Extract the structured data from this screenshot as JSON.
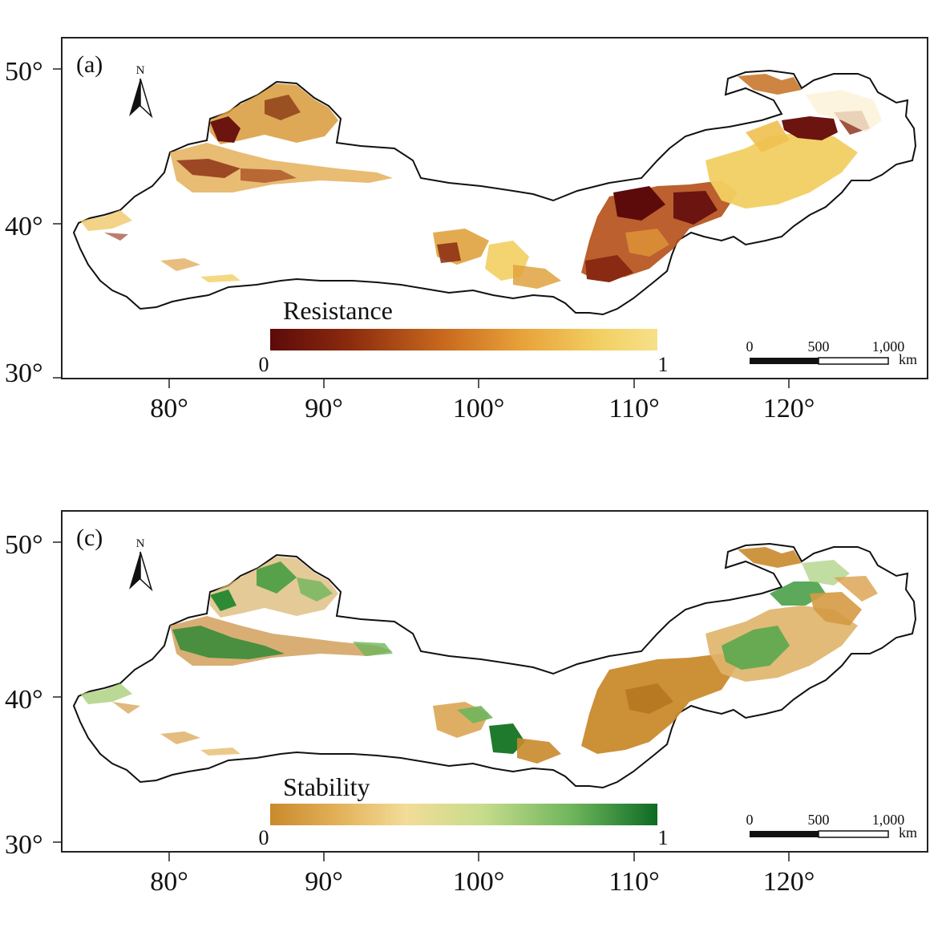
{
  "panels": [
    {
      "label": "(a)",
      "colorbar": {
        "title": "Resistance",
        "min_label": "0",
        "max_label": "1",
        "stops": [
          "#5c0a0a",
          "#8a2a0e",
          "#c96a1e",
          "#e8a23a",
          "#f2cf62",
          "#f7e08a"
        ]
      }
    },
    {
      "label": "(c)",
      "colorbar": {
        "title": "Stability",
        "min_label": "0",
        "max_label": "1",
        "stops": [
          "#c98a2c",
          "#e3b25a",
          "#f2dc98",
          "#c6dc8c",
          "#6fb55c",
          "#0d6b23"
        ]
      }
    }
  ],
  "axes": {
    "x_ticks": [
      "80°",
      "90°",
      "100°",
      "110°",
      "120°"
    ],
    "y_ticks": [
      "50°",
      "40°",
      "30°"
    ]
  },
  "north_arrow": {
    "label": "N"
  },
  "scale_bar": {
    "labels": [
      "0",
      "500",
      "1,000"
    ],
    "unit": "km"
  },
  "icons": {
    "north_arrow": "north-arrow-icon"
  }
}
